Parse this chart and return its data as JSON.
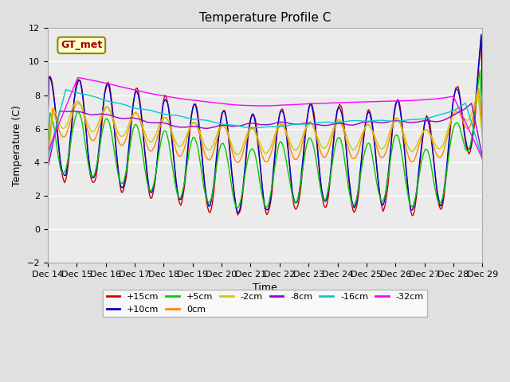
{
  "title": "Temperature Profile C",
  "xlabel": "Time",
  "ylabel": "Temperature (C)",
  "ylim": [
    -2,
    12
  ],
  "yticks": [
    -2,
    0,
    2,
    4,
    6,
    8,
    10,
    12
  ],
  "legend_label": "GT_met",
  "series_labels": [
    "+15cm",
    "+10cm",
    "+5cm",
    "0cm",
    "-2cm",
    "-8cm",
    "-16cm",
    "-32cm"
  ],
  "series_colors": [
    "#cc0000",
    "#0000cc",
    "#00cc00",
    "#ff8800",
    "#cccc00",
    "#9900cc",
    "#00cccc",
    "#ff00ff"
  ],
  "x_tick_labels": [
    "Dec 14",
    "Dec 15",
    "Dec 16",
    "Dec 17",
    "Dec 18",
    "Dec 19",
    "Dec 20",
    "Dec 21",
    "Dec 22",
    "Dec 23",
    "Dec 24",
    "Dec 25",
    "Dec 26",
    "Dec 27",
    "Dec 28",
    "Dec 29"
  ],
  "background_color": "#e0e0e0",
  "plot_bg": "#ebebeb",
  "title_fontsize": 11,
  "axis_fontsize": 9,
  "tick_fontsize": 8
}
